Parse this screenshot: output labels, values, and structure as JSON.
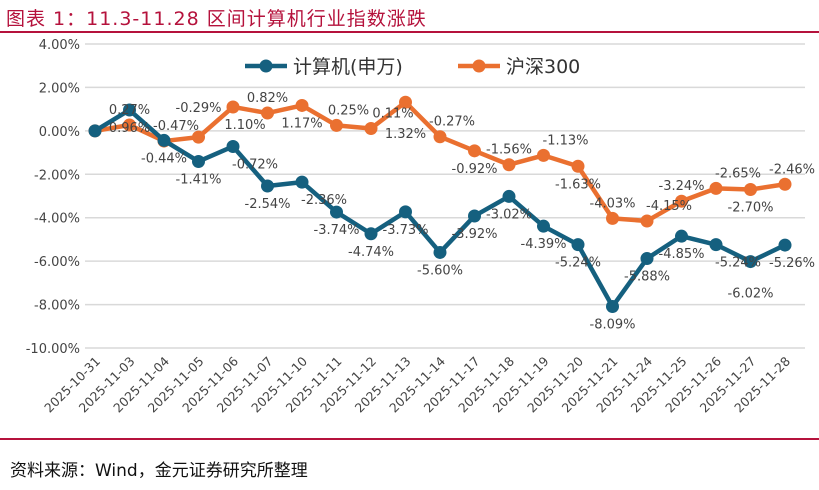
{
  "title": "图表 1：11.3-11.28 区间计算机行业指数涨跌",
  "source": "资料来源：Wind，金元证券研究所整理",
  "chart_data": {
    "type": "line",
    "title": "11.3-11.28 区间计算机行业指数涨跌",
    "ylim": [
      -10,
      4
    ],
    "yticks": [
      "4.00%",
      "2.00%",
      "0.00%",
      "-2.00%",
      "-4.00%",
      "-6.00%",
      "-8.00%",
      "-10.00%"
    ],
    "ytick_values": [
      4,
      2,
      0,
      -2,
      -4,
      -6,
      -8,
      -10
    ],
    "legend_position": "top",
    "grid": true,
    "categories": [
      "2025-10-31",
      "2025-11-03",
      "2025-11-04",
      "2025-11-05",
      "2025-11-06",
      "2025-11-07",
      "2025-11-10",
      "2025-11-11",
      "2025-11-12",
      "2025-11-13",
      "2025-11-14",
      "2025-11-17",
      "2025-11-18",
      "2025-11-19",
      "2025-11-20",
      "2025-11-21",
      "2025-11-24",
      "2025-11-25",
      "2025-11-26",
      "2025-11-27",
      "2025-11-28"
    ],
    "series": [
      {
        "name": "计算机(申万)",
        "color": "#15607f",
        "values": [
          0,
          0.96,
          -0.44,
          -1.41,
          -0.72,
          -2.54,
          -2.36,
          -3.74,
          -4.74,
          -3.73,
          -5.6,
          -3.92,
          -3.02,
          -4.39,
          -5.24,
          -8.09,
          -5.88,
          -4.85,
          -5.24,
          -6.02,
          -5.26
        ]
      },
      {
        "name": "沪深300",
        "color": "#ea7030",
        "values": [
          0,
          0.27,
          -0.47,
          -0.29,
          1.1,
          0.82,
          1.17,
          0.25,
          0.11,
          1.32,
          -0.27,
          -0.92,
          -1.56,
          -1.13,
          -1.63,
          -4.03,
          -4.15,
          -3.24,
          -2.65,
          -2.7,
          -2.46
        ]
      }
    ]
  }
}
